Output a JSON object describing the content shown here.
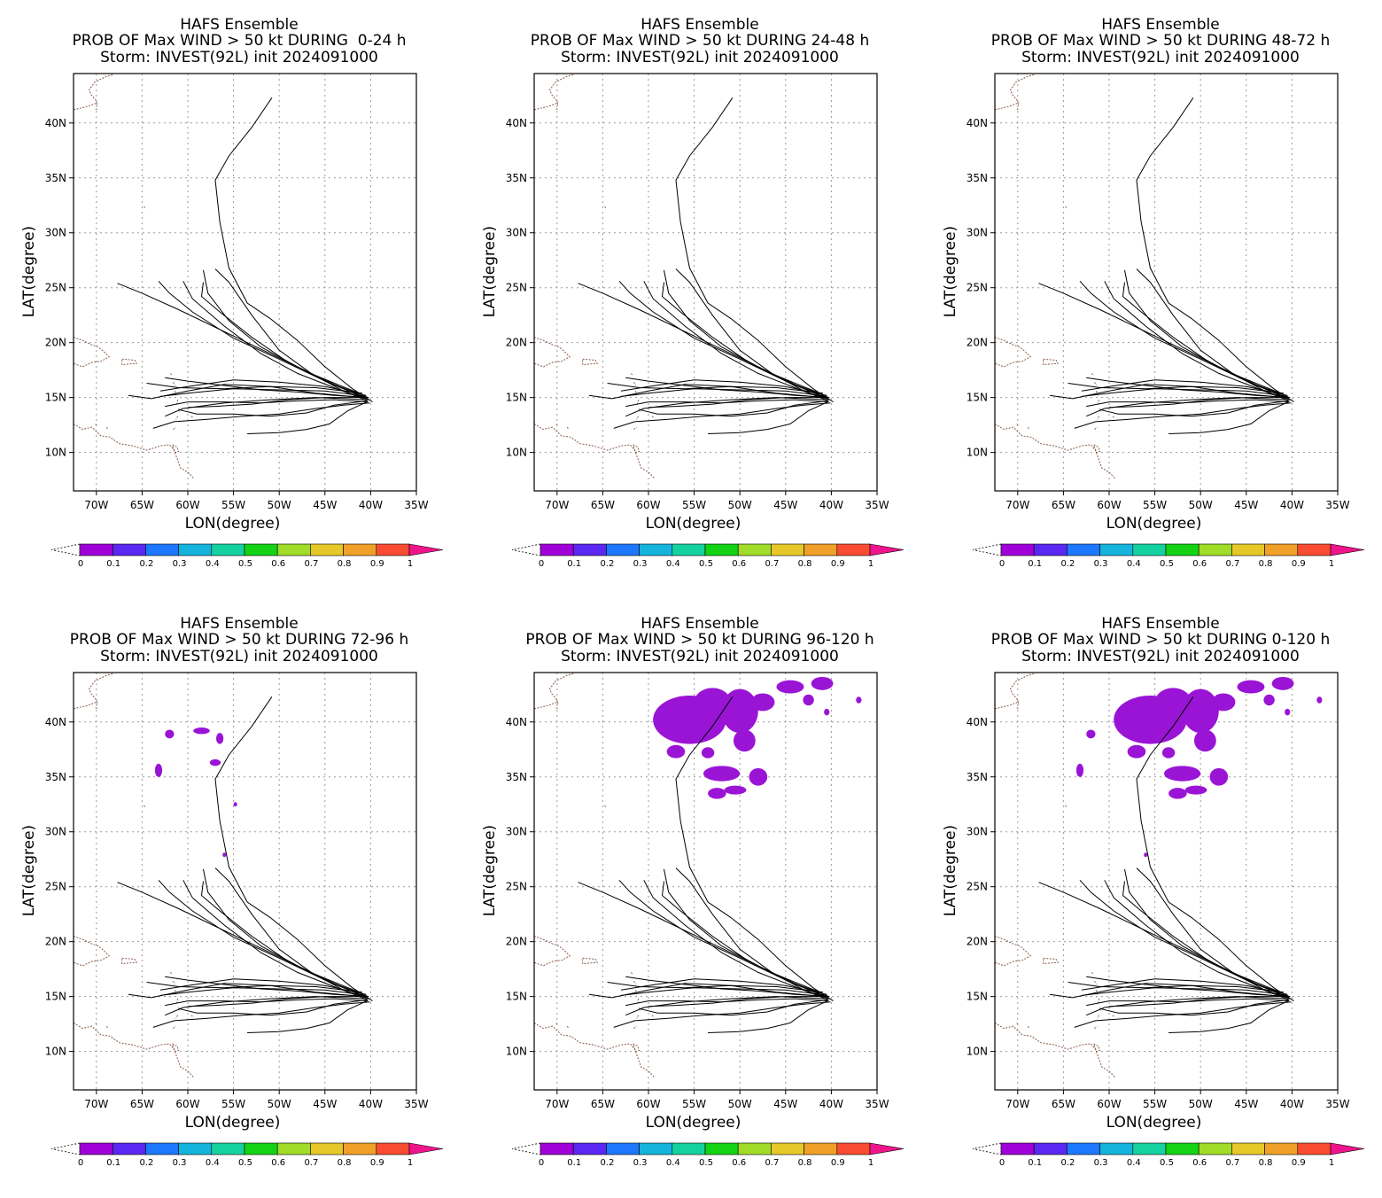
{
  "figure": {
    "panels": [
      {
        "title1": "HAFS Ensemble",
        "title2": "PROB OF Max WIND > 50 kt DURING  0-24 h",
        "title3": "Storm: INVEST(92L) init 2024091000",
        "patches": []
      },
      {
        "title1": "HAFS Ensemble",
        "title2": "PROB OF Max WIND > 50 kt DURING 24-48 h",
        "title3": "Storm: INVEST(92L) init 2024091000",
        "patches": []
      },
      {
        "title1": "HAFS Ensemble",
        "title2": "PROB OF Max WIND > 50 kt DURING 48-72 h",
        "title3": "Storm: INVEST(92L) init 2024091000",
        "patches": []
      },
      {
        "title1": "HAFS Ensemble",
        "title2": "PROB OF Max WIND > 50 kt DURING 72-96 h",
        "title3": "Storm: INVEST(92L) init 2024091000",
        "patches": [
          {
            "lon": -62.0,
            "lat": 38.9,
            "rx": 0.5,
            "ry": 0.4
          },
          {
            "lon": -58.5,
            "lat": 39.2,
            "rx": 0.9,
            "ry": 0.3
          },
          {
            "lon": -56.5,
            "lat": 38.5,
            "rx": 0.4,
            "ry": 0.5
          },
          {
            "lon": -63.2,
            "lat": 35.6,
            "rx": 0.4,
            "ry": 0.6
          },
          {
            "lon": -57.0,
            "lat": 36.3,
            "rx": 0.6,
            "ry": 0.3
          },
          {
            "lon": -54.8,
            "lat": 32.5,
            "rx": 0.2,
            "ry": 0.2
          },
          {
            "lon": -56.0,
            "lat": 27.9,
            "rx": 0.2,
            "ry": 0.2
          }
        ]
      },
      {
        "title1": "HAFS Ensemble",
        "title2": "PROB OF Max WIND > 50 kt DURING 96-120 h",
        "title3": "Storm: INVEST(92L) init 2024091000",
        "patches": [
          {
            "lon": -55.5,
            "lat": 40.2,
            "rx": 4.0,
            "ry": 2.2
          },
          {
            "lon": -53.0,
            "lat": 41.8,
            "rx": 2.0,
            "ry": 1.3
          },
          {
            "lon": -50.0,
            "lat": 41.0,
            "rx": 2.0,
            "ry": 2.0
          },
          {
            "lon": -47.5,
            "lat": 41.8,
            "rx": 1.3,
            "ry": 0.8
          },
          {
            "lon": -44.5,
            "lat": 43.2,
            "rx": 1.5,
            "ry": 0.6
          },
          {
            "lon": -41.0,
            "lat": 43.5,
            "rx": 1.2,
            "ry": 0.6
          },
          {
            "lon": -49.5,
            "lat": 38.3,
            "rx": 1.2,
            "ry": 1.0
          },
          {
            "lon": -57.0,
            "lat": 37.3,
            "rx": 1.0,
            "ry": 0.6
          },
          {
            "lon": -53.5,
            "lat": 37.2,
            "rx": 0.7,
            "ry": 0.5
          },
          {
            "lon": -52.0,
            "lat": 35.3,
            "rx": 2.0,
            "ry": 0.7
          },
          {
            "lon": -48.0,
            "lat": 35.0,
            "rx": 1.0,
            "ry": 0.8
          },
          {
            "lon": -52.5,
            "lat": 33.5,
            "rx": 1.0,
            "ry": 0.5
          },
          {
            "lon": -50.5,
            "lat": 33.8,
            "rx": 1.2,
            "ry": 0.4
          },
          {
            "lon": -42.5,
            "lat": 42.0,
            "rx": 0.6,
            "ry": 0.5
          },
          {
            "lon": -37.0,
            "lat": 42.0,
            "rx": 0.3,
            "ry": 0.3
          },
          {
            "lon": -40.5,
            "lat": 40.9,
            "rx": 0.3,
            "ry": 0.3
          }
        ]
      },
      {
        "title1": "HAFS Ensemble",
        "title2": "PROB OF Max WIND > 50 kt DURING 0-120 h",
        "title3": "Storm: INVEST(92L) init 2024091000",
        "patches": [
          {
            "lon": -55.5,
            "lat": 40.2,
            "rx": 4.0,
            "ry": 2.2
          },
          {
            "lon": -53.0,
            "lat": 41.8,
            "rx": 2.0,
            "ry": 1.3
          },
          {
            "lon": -50.0,
            "lat": 41.0,
            "rx": 2.0,
            "ry": 2.0
          },
          {
            "lon": -47.5,
            "lat": 41.8,
            "rx": 1.3,
            "ry": 0.8
          },
          {
            "lon": -44.5,
            "lat": 43.2,
            "rx": 1.5,
            "ry": 0.6
          },
          {
            "lon": -41.0,
            "lat": 43.5,
            "rx": 1.2,
            "ry": 0.6
          },
          {
            "lon": -49.5,
            "lat": 38.3,
            "rx": 1.2,
            "ry": 1.0
          },
          {
            "lon": -57.0,
            "lat": 37.3,
            "rx": 1.0,
            "ry": 0.6
          },
          {
            "lon": -53.5,
            "lat": 37.2,
            "rx": 0.7,
            "ry": 0.5
          },
          {
            "lon": -52.0,
            "lat": 35.3,
            "rx": 2.0,
            "ry": 0.7
          },
          {
            "lon": -48.0,
            "lat": 35.0,
            "rx": 1.0,
            "ry": 0.8
          },
          {
            "lon": -52.5,
            "lat": 33.5,
            "rx": 1.0,
            "ry": 0.5
          },
          {
            "lon": -50.5,
            "lat": 33.8,
            "rx": 1.2,
            "ry": 0.4
          },
          {
            "lon": -42.5,
            "lat": 42.0,
            "rx": 0.6,
            "ry": 0.5
          },
          {
            "lon": -37.0,
            "lat": 42.0,
            "rx": 0.3,
            "ry": 0.3
          },
          {
            "lon": -40.5,
            "lat": 40.9,
            "rx": 0.3,
            "ry": 0.3
          },
          {
            "lon": -62.0,
            "lat": 38.9,
            "rx": 0.5,
            "ry": 0.4
          },
          {
            "lon": -63.2,
            "lat": 35.6,
            "rx": 0.4,
            "ry": 0.6
          },
          {
            "lon": -56.0,
            "lat": 27.9,
            "rx": 0.2,
            "ry": 0.2
          }
        ]
      }
    ]
  },
  "chart_data": {
    "type": "map",
    "xlabel": "LON(degree)",
    "ylabel": "LAT(degree)",
    "xlim": [
      -72.5,
      -35
    ],
    "ylim": [
      6.5,
      44.5
    ],
    "x_ticks": [
      -70,
      -65,
      -60,
      -55,
      -50,
      -45,
      -40,
      -35
    ],
    "x_tick_labels": [
      "70W",
      "65W",
      "60W",
      "55W",
      "50W",
      "45W",
      "40W",
      "35W"
    ],
    "y_ticks": [
      10,
      15,
      20,
      25,
      30,
      35,
      40
    ],
    "y_tick_labels": [
      "10N",
      "15N",
      "20N",
      "25N",
      "30N",
      "35N",
      "40N"
    ],
    "grid": true,
    "colorbar": {
      "levels": [
        0,
        0.1,
        0.2,
        0.3,
        0.4,
        0.5,
        0.6,
        0.7,
        0.8,
        0.9,
        1
      ],
      "labels": [
        "0",
        "0.1",
        "0.2",
        "0.3",
        "0.4",
        "0.5",
        "0.6",
        "0.7",
        "0.8",
        "0.9",
        "1"
      ],
      "colors": [
        "#a000d8",
        "#5a28f0",
        "#1e78ff",
        "#14b4dc",
        "#14d2a0",
        "#14d214",
        "#a0dc28",
        "#e6c828",
        "#f0a028",
        "#fa4c32"
      ],
      "over_color": "#f0148c"
    },
    "probability_patch_color": "#9a14d6",
    "tracks": [
      [
        [
          -39.8,
          14.6
        ],
        [
          -42,
          15.8
        ],
        [
          -45,
          17.8
        ],
        [
          -48,
          20.2
        ],
        [
          -51,
          22.2
        ],
        [
          -53.5,
          23.6
        ],
        [
          -55.5,
          26.8
        ],
        [
          -56.5,
          31
        ],
        [
          -57,
          34.8
        ],
        [
          -55.5,
          37
        ],
        [
          -53,
          39.6
        ],
        [
          -50.8,
          42.3
        ]
      ],
      [
        [
          -40.2,
          14.8
        ],
        [
          -43,
          15.6
        ],
        [
          -46.5,
          17.2
        ],
        [
          -50,
          19.3
        ],
        [
          -53,
          22.5
        ],
        [
          -55.5,
          25.5
        ],
        [
          -57,
          26.7
        ]
      ],
      [
        [
          -40.5,
          14.9
        ],
        [
          -44,
          16.2
        ],
        [
          -48,
          17.8
        ],
        [
          -52,
          19.6
        ],
        [
          -55.5,
          22
        ],
        [
          -57.8,
          24.5
        ],
        [
          -58.3,
          26.6
        ]
      ],
      [
        [
          -40.3,
          14.7
        ],
        [
          -44,
          15.9
        ],
        [
          -48,
          17.2
        ],
        [
          -52,
          19.0
        ],
        [
          -56,
          21.5
        ],
        [
          -59.5,
          24.0
        ],
        [
          -60.5,
          25.6
        ]
      ],
      [
        [
          -40.6,
          15.0
        ],
        [
          -44.5,
          16.3
        ],
        [
          -49,
          18.2
        ],
        [
          -53,
          20.5
        ],
        [
          -56.5,
          22.8
        ],
        [
          -58.5,
          24.2
        ],
        [
          -58.3,
          25.5
        ]
      ],
      [
        [
          -40.8,
          15.2
        ],
        [
          -45,
          16.5
        ],
        [
          -50,
          18.5
        ],
        [
          -55,
          20.4
        ],
        [
          -59.5,
          22.8
        ],
        [
          -62,
          24.5
        ],
        [
          -63.2,
          25.6
        ]
      ],
      [
        [
          -41.0,
          15.3
        ],
        [
          -46,
          17.0
        ],
        [
          -51,
          19.0
        ],
        [
          -56,
          21.0
        ],
        [
          -61,
          23.0
        ],
        [
          -65,
          24.5
        ],
        [
          -67.7,
          25.4
        ]
      ],
      [
        [
          -40.1,
          14.5
        ],
        [
          -43,
          14.3
        ],
        [
          -46,
          14.0
        ],
        [
          -50,
          13.5
        ],
        [
          -54,
          13.3
        ],
        [
          -58,
          13.0
        ],
        [
          -61.5,
          12.8
        ],
        [
          -63.8,
          12.2
        ]
      ],
      [
        [
          -40.4,
          14.6
        ],
        [
          -42.5,
          13.8
        ],
        [
          -44.5,
          12.6
        ],
        [
          -47,
          12.1
        ],
        [
          -50,
          11.8
        ],
        [
          -53.5,
          11.7
        ]
      ],
      [
        [
          -40.3,
          14.6
        ],
        [
          -44,
          14.8
        ],
        [
          -48,
          14.7
        ],
        [
          -52,
          14.5
        ],
        [
          -56,
          14.6
        ],
        [
          -60,
          14.6
        ],
        [
          -62.5,
          14.2
        ]
      ],
      [
        [
          -40.2,
          15.0
        ],
        [
          -44,
          15.2
        ],
        [
          -48,
          15.5
        ],
        [
          -52,
          15.7
        ],
        [
          -56,
          16.1
        ],
        [
          -60,
          16.5
        ],
        [
          -62.5,
          16.8
        ]
      ],
      [
        [
          -40.5,
          15.2
        ],
        [
          -45,
          16.0
        ],
        [
          -50,
          16.4
        ],
        [
          -55,
          16.6
        ],
        [
          -60,
          16.0
        ],
        [
          -63,
          15.6
        ]
      ],
      [
        [
          -40.9,
          15.4
        ],
        [
          -46,
          15.9
        ],
        [
          -51,
          16.0
        ],
        [
          -56,
          15.8
        ],
        [
          -61,
          15.9
        ],
        [
          -64.5,
          16.3
        ]
      ],
      [
        [
          -40.5,
          15.0
        ],
        [
          -45,
          15.0
        ],
        [
          -49,
          14.8
        ],
        [
          -53,
          14.4
        ],
        [
          -57,
          14.2
        ],
        [
          -60,
          14.1
        ]
      ],
      [
        [
          -40.4,
          15.1
        ],
        [
          -45,
          15.6
        ],
        [
          -50,
          15.7
        ],
        [
          -55,
          15.8
        ],
        [
          -60,
          15.4
        ],
        [
          -63,
          15.1
        ]
      ],
      [
        [
          -40.4,
          14.7
        ],
        [
          -44,
          14.3
        ],
        [
          -47,
          13.6
        ],
        [
          -51,
          13.3
        ],
        [
          -55,
          13.5
        ],
        [
          -59,
          13.5
        ],
        [
          -61,
          13.9
        ]
      ],
      [
        [
          -40.8,
          15.0
        ],
        [
          -46,
          15.4
        ],
        [
          -51,
          16.0
        ],
        [
          -56,
          16.2
        ],
        [
          -60,
          15.6
        ],
        [
          -64,
          14.9
        ],
        [
          -66.5,
          15.2
        ]
      ],
      [
        [
          -40.5,
          14.8
        ],
        [
          -46,
          15.0
        ],
        [
          -51,
          14.8
        ],
        [
          -56,
          14.5
        ],
        [
          -60.5,
          14.0
        ],
        [
          -62.5,
          13.3
        ]
      ]
    ],
    "coast": [
      [
        [
          -72.5,
          20.5
        ],
        [
          -71.5,
          20.2
        ],
        [
          -70.5,
          19.8
        ],
        [
          -69.8,
          19.6
        ],
        [
          -69.2,
          19.2
        ],
        [
          -68.6,
          18.7
        ],
        [
          -69.5,
          18.3
        ],
        [
          -70.5,
          18.2
        ],
        [
          -71.5,
          17.8
        ],
        [
          -72.5,
          18.1
        ]
      ],
      [
        [
          -67.2,
          18.5
        ],
        [
          -65.8,
          18.4
        ],
        [
          -65.6,
          18.1
        ],
        [
          -67.2,
          18.0
        ],
        [
          -67.2,
          18.5
        ]
      ],
      [
        [
          -72.5,
          12.6
        ],
        [
          -71.5,
          12.1
        ],
        [
          -70.5,
          12.3
        ],
        [
          -69.5,
          11.5
        ],
        [
          -68.5,
          11.4
        ],
        [
          -67.5,
          10.8
        ],
        [
          -66,
          10.6
        ],
        [
          -64.5,
          10.2
        ],
        [
          -63,
          10.6
        ],
        [
          -62,
          10.7
        ],
        [
          -61.5,
          10.2
        ],
        [
          -60.8,
          8.6
        ],
        [
          -60,
          8.2
        ],
        [
          -59.3,
          7.6
        ]
      ],
      [
        [
          -61.7,
          10.7
        ],
        [
          -61.2,
          10.5
        ],
        [
          -61.0,
          10.1
        ],
        [
          -61.4,
          10.0
        ],
        [
          -61.7,
          10.7
        ]
      ],
      [
        [
          -70.1,
          12.6
        ],
        [
          -69.9,
          12.4
        ]
      ],
      [
        [
          -68.9,
          12.3
        ],
        [
          -68.7,
          12.1
        ]
      ],
      [
        [
          -61.6,
          12.1
        ],
        [
          -61.3,
          12.3
        ]
      ],
      [
        [
          -61.1,
          13.3
        ],
        [
          -61.3,
          13.0
        ]
      ],
      [
        [
          -61.0,
          14.0
        ],
        [
          -60.9,
          13.7
        ]
      ],
      [
        [
          -61.1,
          14.8
        ],
        [
          -61.2,
          14.4
        ]
      ],
      [
        [
          -61.4,
          15.6
        ],
        [
          -61.3,
          15.2
        ]
      ],
      [
        [
          -61.6,
          16.4
        ],
        [
          -61.4,
          16.1
        ]
      ],
      [
        [
          -61.9,
          17.2
        ],
        [
          -61.7,
          17.0
        ]
      ],
      [
        [
          -59.6,
          13.3
        ],
        [
          -59.4,
          13.1
        ]
      ],
      [
        [
          -64.8,
          32.4
        ],
        [
          -64.6,
          32.2
        ]
      ],
      [
        [
          -72.5,
          41.2
        ],
        [
          -71.0,
          41.5
        ],
        [
          -70.0,
          41.8
        ],
        [
          -69.9,
          41.6
        ],
        [
          -70.0,
          42.0
        ],
        [
          -70.6,
          42.6
        ],
        [
          -70.8,
          43.0
        ],
        [
          -70.2,
          43.7
        ],
        [
          -69.5,
          44.0
        ],
        [
          -69.0,
          44.2
        ],
        [
          -68.2,
          44.4
        ]
      ],
      [
        [
          -70.1,
          41.3
        ],
        [
          -69.9,
          41.2
        ]
      ]
    ]
  }
}
